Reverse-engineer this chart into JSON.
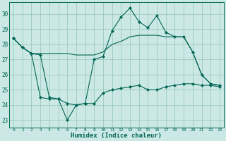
{
  "xlabel": "Humidex (Indice chaleur)",
  "bg_color": "#cce8e4",
  "grid_color": "#99ccbb",
  "line_color": "#006655",
  "ylim": [
    22.5,
    30.8
  ],
  "xlim": [
    -0.5,
    23.5
  ],
  "yticks": [
    23,
    24,
    25,
    26,
    27,
    28,
    29,
    30
  ],
  "xticks": [
    0,
    1,
    2,
    3,
    4,
    5,
    6,
    7,
    8,
    9,
    10,
    11,
    12,
    13,
    14,
    15,
    16,
    17,
    18,
    19,
    20,
    21,
    22,
    23
  ],
  "line1_x": [
    0,
    1,
    2,
    3,
    4,
    5,
    6,
    7,
    8,
    9,
    10,
    11,
    12,
    13,
    14,
    15,
    16,
    17,
    18,
    19,
    20,
    21,
    22,
    23
  ],
  "line1_y": [
    28.4,
    27.8,
    27.4,
    27.4,
    27.4,
    27.4,
    27.4,
    27.3,
    27.3,
    27.3,
    27.5,
    28.0,
    28.2,
    28.5,
    28.6,
    28.6,
    28.6,
    28.5,
    28.5,
    28.5,
    27.5,
    26.0,
    25.4,
    25.3
  ],
  "line2_x": [
    0,
    1,
    2,
    3,
    4,
    5,
    6,
    7,
    8,
    9,
    10,
    11,
    12,
    13,
    14,
    15,
    16,
    17,
    18,
    19,
    20,
    21,
    22,
    23
  ],
  "line2_y": [
    28.4,
    27.8,
    27.4,
    27.3,
    24.5,
    24.4,
    24.1,
    24.0,
    24.1,
    27.0,
    27.2,
    28.9,
    29.8,
    30.4,
    29.5,
    29.1,
    29.9,
    28.8,
    28.5,
    28.5,
    27.5,
    26.0,
    25.4,
    25.3
  ],
  "line3_x": [
    0,
    1,
    2,
    3,
    4,
    5,
    6,
    7,
    8,
    9,
    10,
    11,
    12,
    13,
    14,
    15,
    16,
    17,
    18,
    19,
    20,
    21,
    22,
    23
  ],
  "line3_y": [
    28.4,
    27.8,
    27.4,
    24.5,
    24.4,
    24.4,
    23.0,
    24.0,
    24.1,
    24.1,
    24.8,
    25.0,
    25.1,
    25.2,
    25.3,
    25.0,
    25.0,
    25.2,
    25.3,
    25.4,
    25.4,
    25.3,
    25.3,
    25.2
  ]
}
